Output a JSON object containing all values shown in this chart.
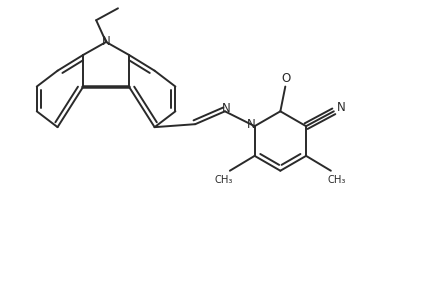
{
  "bg_color": "#ffffff",
  "line_color": "#2a2a2a",
  "line_width": 1.4,
  "fig_width": 4.34,
  "fig_height": 2.86,
  "dpi": 100,
  "xlim": [
    0,
    43.4
  ],
  "ylim": [
    0,
    28.6
  ]
}
